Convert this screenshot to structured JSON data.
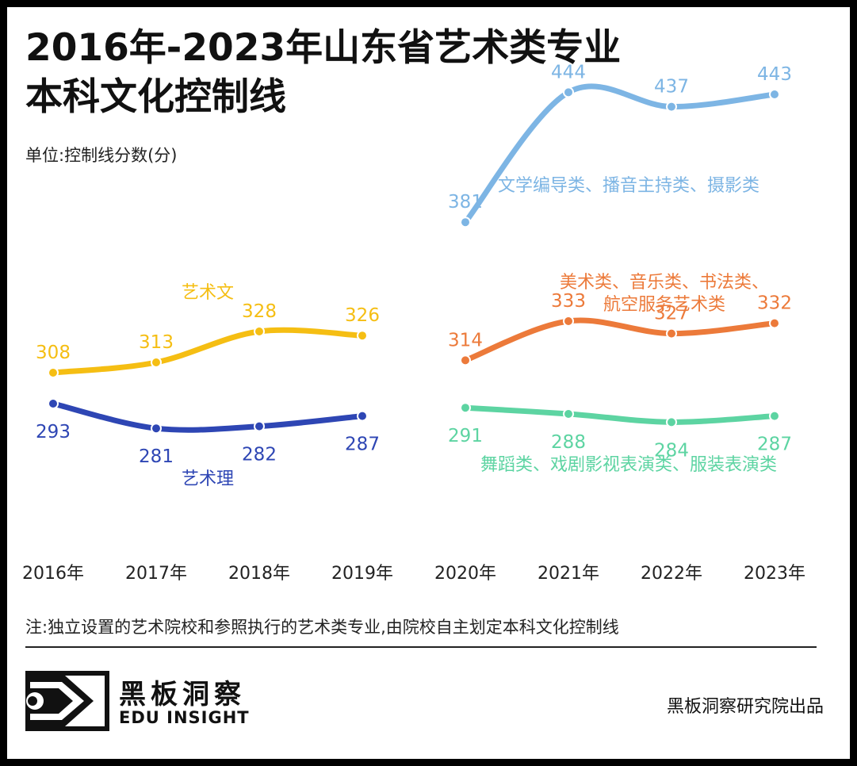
{
  "title_line1": "2016年-2023年山东省艺术类专业",
  "title_line2": "本科文化控制线",
  "unit": "单位:控制线分数(分)",
  "note": "注:独立设置的艺术院校和参照执行的艺术类专业,由院校自主划定本科文化控制线",
  "brand": {
    "cn": "黑板洞察",
    "en": "EDU INSIGHT"
  },
  "publisher": "黑板洞察研究院出品",
  "colors": {
    "art_lit": "#F5BE13",
    "art_sci": "#2E46B4",
    "writing": "#7DB5E4",
    "fine_art": "#EC7A3A",
    "dance": "#5DD4A2"
  },
  "chart_data": {
    "type": "line",
    "categories": [
      "2016年",
      "2017年",
      "2018年",
      "2019年",
      "2020年",
      "2021年",
      "2022年",
      "2023年"
    ],
    "xlabel": "",
    "ylabel": "控制线分数(分)",
    "ylim": [
      270,
      460
    ],
    "series": [
      {
        "key": "art_lit",
        "name": "艺术文",
        "x": [
          "2016年",
          "2017年",
          "2018年",
          "2019年"
        ],
        "values": [
          308,
          313,
          328,
          326
        ],
        "labels": [
          "308",
          "313",
          "328",
          "326"
        ],
        "label_pos": "above"
      },
      {
        "key": "art_sci",
        "name": "艺术理",
        "x": [
          "2016年",
          "2017年",
          "2018年",
          "2019年"
        ],
        "values": [
          293,
          281,
          282,
          287
        ],
        "labels": [
          "293",
          "281",
          "282",
          "287"
        ],
        "label_pos": "below"
      },
      {
        "key": "writing",
        "name": "文学编导类、播音主持类、摄影类",
        "x": [
          "2020年",
          "2021年",
          "2022年",
          "2023年"
        ],
        "values": [
          381,
          444,
          437,
          443
        ],
        "labels": [
          "381",
          "444",
          "437",
          "443"
        ],
        "label_pos": "above"
      },
      {
        "key": "fine_art",
        "name_lines": [
          "美术类、音乐类、书法类、",
          "航空服务艺术类"
        ],
        "x": [
          "2020年",
          "2021年",
          "2022年",
          "2023年"
        ],
        "values": [
          314,
          333,
          327,
          332
        ],
        "labels": [
          "314",
          "333",
          "327",
          "332"
        ],
        "label_pos": "above"
      },
      {
        "key": "dance",
        "name": "舞蹈类、戏剧影视表演类、服装表演类",
        "x": [
          "2020年",
          "2021年",
          "2022年",
          "2023年"
        ],
        "values": [
          291,
          288,
          284,
          287
        ],
        "labels": [
          "291",
          "288",
          "284",
          "287"
        ],
        "label_pos": "below"
      }
    ]
  }
}
